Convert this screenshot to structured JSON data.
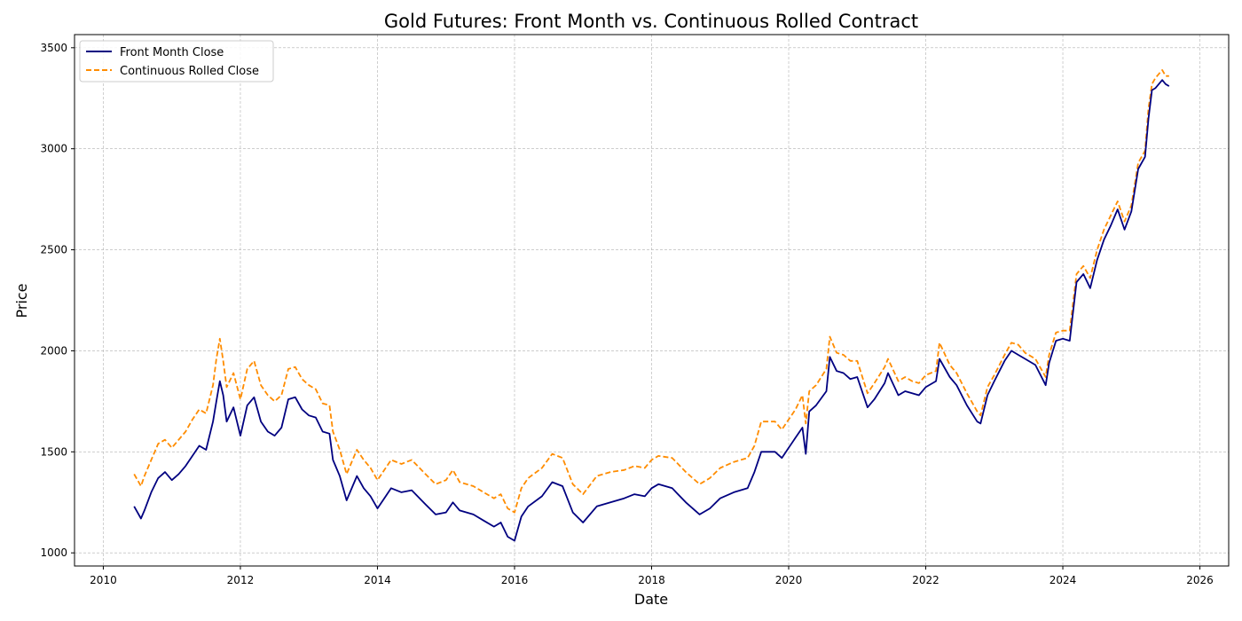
{
  "chart_data": {
    "type": "line",
    "title": "Gold Futures: Front Month vs. Continuous Rolled Contract",
    "xlabel": "Date",
    "ylabel": "Price",
    "xlim": [
      2009.58,
      2026.42
    ],
    "ylim": [
      935,
      3565
    ],
    "x_ticks": [
      2010,
      2012,
      2014,
      2016,
      2018,
      2020,
      2022,
      2024,
      2026
    ],
    "y_ticks": [
      1000,
      1500,
      2000,
      2500,
      3000,
      3500
    ],
    "grid": true,
    "legend_position": "top-left",
    "colors": {
      "front": "#000080",
      "continuous": "#ff8c00"
    },
    "series": [
      {
        "name": "Front Month Close",
        "style": "solid",
        "color": "#000080",
        "x": [
          2010.45,
          2010.55,
          2010.6,
          2010.7,
          2010.8,
          2010.9,
          2011.0,
          2011.1,
          2011.2,
          2011.3,
          2011.4,
          2011.5,
          2011.6,
          2011.65,
          2011.7,
          2011.75,
          2011.8,
          2011.9,
          2012.0,
          2012.1,
          2012.2,
          2012.3,
          2012.4,
          2012.5,
          2012.6,
          2012.7,
          2012.8,
          2012.9,
          2013.0,
          2013.1,
          2013.2,
          2013.3,
          2013.35,
          2013.45,
          2013.55,
          2013.7,
          2013.8,
          2013.9,
          2014.0,
          2014.1,
          2014.2,
          2014.35,
          2014.5,
          2014.7,
          2014.85,
          2015.0,
          2015.1,
          2015.2,
          2015.4,
          2015.55,
          2015.7,
          2015.8,
          2015.9,
          2016.0,
          2016.1,
          2016.2,
          2016.4,
          2016.55,
          2016.7,
          2016.85,
          2017.0,
          2017.2,
          2017.4,
          2017.6,
          2017.75,
          2017.9,
          2018.0,
          2018.1,
          2018.3,
          2018.5,
          2018.7,
          2018.85,
          2019.0,
          2019.2,
          2019.4,
          2019.5,
          2019.6,
          2019.8,
          2019.9,
          2020.0,
          2020.1,
          2020.2,
          2020.25,
          2020.3,
          2020.4,
          2020.55,
          2020.6,
          2020.7,
          2020.8,
          2020.9,
          2021.0,
          2021.15,
          2021.25,
          2021.4,
          2021.45,
          2021.6,
          2021.7,
          2021.8,
          2021.9,
          2022.0,
          2022.15,
          2022.2,
          2022.35,
          2022.45,
          2022.6,
          2022.75,
          2022.8,
          2022.9,
          2023.0,
          2023.15,
          2023.25,
          2023.35,
          2023.45,
          2023.6,
          2023.75,
          2023.8,
          2023.9,
          2024.0,
          2024.1,
          2024.2,
          2024.3,
          2024.4,
          2024.5,
          2024.6,
          2024.7,
          2024.8,
          2024.9,
          2025.0,
          2025.1,
          2025.2,
          2025.25,
          2025.3,
          2025.35,
          2025.45,
          2025.5,
          2025.55
        ],
        "values": [
          1230,
          1170,
          1210,
          1300,
          1370,
          1400,
          1360,
          1390,
          1430,
          1480,
          1530,
          1510,
          1650,
          1750,
          1850,
          1780,
          1650,
          1720,
          1580,
          1730,
          1770,
          1650,
          1600,
          1580,
          1620,
          1760,
          1770,
          1710,
          1680,
          1670,
          1600,
          1590,
          1460,
          1380,
          1260,
          1380,
          1320,
          1280,
          1220,
          1270,
          1320,
          1300,
          1310,
          1240,
          1190,
          1200,
          1250,
          1210,
          1190,
          1160,
          1130,
          1150,
          1080,
          1060,
          1180,
          1230,
          1280,
          1350,
          1330,
          1200,
          1150,
          1230,
          1250,
          1270,
          1290,
          1280,
          1320,
          1340,
          1320,
          1250,
          1190,
          1220,
          1270,
          1300,
          1320,
          1400,
          1500,
          1500,
          1470,
          1520,
          1570,
          1620,
          1490,
          1700,
          1730,
          1800,
          1970,
          1900,
          1890,
          1860,
          1870,
          1720,
          1760,
          1840,
          1890,
          1780,
          1800,
          1790,
          1780,
          1820,
          1850,
          1960,
          1870,
          1830,
          1730,
          1650,
          1640,
          1780,
          1850,
          1950,
          2000,
          1980,
          1960,
          1930,
          1830,
          1940,
          2050,
          2060,
          2050,
          2340,
          2380,
          2310,
          2450,
          2550,
          2620,
          2700,
          2600,
          2690,
          2900,
          2960,
          3150,
          3290,
          3300,
          3340,
          3320,
          3310
        ]
      },
      {
        "name": "Continuous Rolled Close",
        "style": "dashed",
        "color": "#ff8c00",
        "x": [
          2010.45,
          2010.55,
          2010.6,
          2010.7,
          2010.8,
          2010.9,
          2011.0,
          2011.1,
          2011.2,
          2011.3,
          2011.4,
          2011.5,
          2011.6,
          2011.65,
          2011.7,
          2011.75,
          2011.8,
          2011.9,
          2012.0,
          2012.1,
          2012.2,
          2012.3,
          2012.4,
          2012.5,
          2012.6,
          2012.7,
          2012.8,
          2012.9,
          2013.0,
          2013.1,
          2013.2,
          2013.3,
          2013.35,
          2013.45,
          2013.55,
          2013.7,
          2013.8,
          2013.9,
          2014.0,
          2014.1,
          2014.2,
          2014.35,
          2014.5,
          2014.7,
          2014.85,
          2015.0,
          2015.1,
          2015.2,
          2015.4,
          2015.55,
          2015.7,
          2015.8,
          2015.9,
          2016.0,
          2016.1,
          2016.2,
          2016.4,
          2016.55,
          2016.7,
          2016.85,
          2017.0,
          2017.2,
          2017.4,
          2017.6,
          2017.75,
          2017.9,
          2018.0,
          2018.1,
          2018.3,
          2018.5,
          2018.7,
          2018.85,
          2019.0,
          2019.2,
          2019.4,
          2019.5,
          2019.6,
          2019.8,
          2019.9,
          2020.0,
          2020.1,
          2020.2,
          2020.25,
          2020.3,
          2020.4,
          2020.55,
          2020.6,
          2020.7,
          2020.8,
          2020.9,
          2021.0,
          2021.15,
          2021.25,
          2021.4,
          2021.45,
          2021.6,
          2021.7,
          2021.8,
          2021.9,
          2022.0,
          2022.15,
          2022.2,
          2022.35,
          2022.45,
          2022.6,
          2022.75,
          2022.8,
          2022.9,
          2023.0,
          2023.15,
          2023.25,
          2023.35,
          2023.45,
          2023.6,
          2023.75,
          2023.8,
          2023.9,
          2024.0,
          2024.1,
          2024.2,
          2024.3,
          2024.4,
          2024.5,
          2024.6,
          2024.7,
          2024.8,
          2024.9,
          2025.0,
          2025.1,
          2025.2,
          2025.25,
          2025.3,
          2025.35,
          2025.45,
          2025.5,
          2025.55
        ],
        "values": [
          1390,
          1330,
          1380,
          1460,
          1540,
          1560,
          1520,
          1560,
          1600,
          1660,
          1710,
          1690,
          1830,
          1960,
          2060,
          1950,
          1820,
          1890,
          1760,
          1910,
          1950,
          1830,
          1780,
          1750,
          1780,
          1910,
          1920,
          1860,
          1830,
          1810,
          1740,
          1730,
          1600,
          1510,
          1390,
          1510,
          1460,
          1420,
          1360,
          1410,
          1460,
          1440,
          1460,
          1390,
          1340,
          1360,
          1410,
          1350,
          1330,
          1300,
          1270,
          1290,
          1220,
          1200,
          1320,
          1370,
          1420,
          1490,
          1470,
          1340,
          1290,
          1380,
          1400,
          1410,
          1430,
          1420,
          1460,
          1480,
          1470,
          1400,
          1340,
          1370,
          1420,
          1450,
          1470,
          1530,
          1650,
          1650,
          1610,
          1660,
          1710,
          1780,
          1640,
          1800,
          1830,
          1910,
          2070,
          1990,
          1980,
          1950,
          1950,
          1790,
          1840,
          1920,
          1960,
          1850,
          1870,
          1850,
          1840,
          1880,
          1900,
          2040,
          1930,
          1890,
          1790,
          1700,
          1680,
          1820,
          1880,
          1980,
          2040,
          2030,
          1990,
          1960,
          1870,
          1980,
          2090,
          2100,
          2100,
          2380,
          2420,
          2360,
          2500,
          2600,
          2670,
          2740,
          2640,
          2720,
          2930,
          2990,
          3200,
          3320,
          3350,
          3390,
          3360,
          3360
        ]
      }
    ]
  }
}
